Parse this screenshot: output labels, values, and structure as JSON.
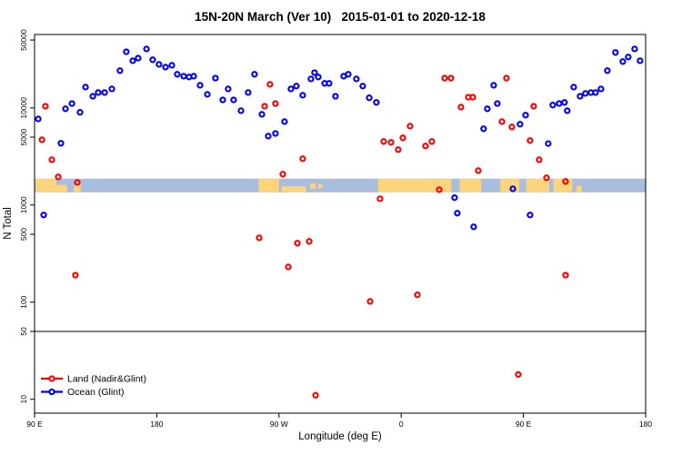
{
  "chart_data": {
    "type": "scatter",
    "title": "15N-20N March (Ver 10)   2015-01-01 to 2020-12-18",
    "xlabel": "Longitude (deg E)",
    "ylabel": "N Total",
    "y_scale": "log10",
    "y_range": [
      7.2,
      57000
    ],
    "y_ticks": [
      10,
      50,
      100,
      500,
      1000,
      5000,
      10000,
      50000
    ],
    "y_tick_labels": [
      "10",
      "50",
      "100",
      "500",
      "1000",
      "5000",
      "10000",
      "50000"
    ],
    "x_axis_span_deg": 450,
    "x_ticks": [
      {
        "t": 0,
        "label": "90 E"
      },
      {
        "t": 90,
        "label": "180"
      },
      {
        "t": 180,
        "label": "90 W"
      },
      {
        "t": 270,
        "label": "0"
      },
      {
        "t": 360,
        "label": "90 E"
      },
      {
        "t": 450,
        "label": "180"
      }
    ],
    "hline_value": 50,
    "grid": false,
    "legend_position": "bottom-left",
    "legend": [
      {
        "label": "Land (Nadir&Glint)",
        "color": "#ff0000"
      },
      {
        "label": "Ocean (Glint)",
        "color": "#0000ff"
      }
    ],
    "series": [
      {
        "name": "Land (Nadir&Glint)",
        "color": "#ff0000",
        "points": [
          [
            5.4,
            4700
          ],
          [
            8.0,
            10400
          ],
          [
            12.7,
            2930
          ],
          [
            17.4,
            1950
          ],
          [
            31.5,
            1710
          ],
          [
            30.1,
            190
          ],
          [
            165.4,
            460
          ],
          [
            169.4,
            10400
          ],
          [
            173.4,
            17500
          ],
          [
            177.4,
            11100
          ],
          [
            182.8,
            2080
          ],
          [
            186.8,
            231
          ],
          [
            193.5,
            405
          ],
          [
            197.5,
            3000
          ],
          [
            202.2,
            423
          ],
          [
            206.9,
            11
          ],
          [
            247.1,
            102
          ],
          [
            254.4,
            1160
          ],
          [
            257.1,
            4510
          ],
          [
            262.5,
            4420
          ],
          [
            267.8,
            3720
          ],
          [
            271.2,
            4920
          ],
          [
            276.5,
            6500
          ],
          [
            281.9,
            119
          ],
          [
            287.9,
            4050
          ],
          [
            292.6,
            4510
          ],
          [
            298.0,
            1440
          ],
          [
            302.0,
            20300
          ],
          [
            306.6,
            20300
          ],
          [
            314.0,
            10200
          ],
          [
            319.4,
            12900
          ],
          [
            322.7,
            12900
          ],
          [
            326.7,
            2260
          ],
          [
            344.2,
            7240
          ],
          [
            347.5,
            20300
          ],
          [
            351.5,
            6370
          ],
          [
            356.2,
            18
          ],
          [
            364.9,
            4610
          ],
          [
            367.6,
            10400
          ],
          [
            371.6,
            2930
          ],
          [
            377.0,
            1910
          ],
          [
            391.0,
            1750
          ],
          [
            391.0,
            190
          ]
        ]
      },
      {
        "name": "Ocean (Glint)",
        "color": "#0000ff",
        "points": [
          [
            2.7,
            7700
          ],
          [
            6.7,
            790
          ],
          [
            19.4,
            4320
          ],
          [
            22.8,
            9800
          ],
          [
            27.5,
            11100
          ],
          [
            33.5,
            9000
          ],
          [
            37.5,
            16400
          ],
          [
            42.9,
            13200
          ],
          [
            46.9,
            14400
          ],
          [
            51.6,
            14400
          ],
          [
            56.9,
            15700
          ],
          [
            62.9,
            24200
          ],
          [
            67.6,
            37900
          ],
          [
            72.3,
            30600
          ],
          [
            76.3,
            32600
          ],
          [
            82.4,
            40500
          ],
          [
            87.0,
            31300
          ],
          [
            91.7,
            28100
          ],
          [
            96.4,
            26300
          ],
          [
            101.1,
            27500
          ],
          [
            105.1,
            22200
          ],
          [
            109.8,
            21200
          ],
          [
            113.8,
            20800
          ],
          [
            117.2,
            21200
          ],
          [
            121.9,
            17100
          ],
          [
            127.2,
            13800
          ],
          [
            133.2,
            20300
          ],
          [
            138.6,
            12100
          ],
          [
            142.6,
            15700
          ],
          [
            146.6,
            12100
          ],
          [
            152.0,
            9370
          ],
          [
            157.3,
            14400
          ],
          [
            162.0,
            22200
          ],
          [
            167.4,
            8600
          ],
          [
            172.1,
            5120
          ],
          [
            177.4,
            5450
          ],
          [
            184.1,
            7240
          ],
          [
            188.8,
            15700
          ],
          [
            192.8,
            16800
          ],
          [
            197.5,
            13500
          ],
          [
            203.5,
            19900
          ],
          [
            206.2,
            23100
          ],
          [
            208.9,
            20800
          ],
          [
            213.6,
            17900
          ],
          [
            216.9,
            17900
          ],
          [
            221.6,
            13200
          ],
          [
            227.6,
            21200
          ],
          [
            231.0,
            22200
          ],
          [
            237.0,
            19900
          ],
          [
            241.7,
            16800
          ],
          [
            246.4,
            12700
          ],
          [
            251.7,
            11400
          ],
          [
            309.3,
            1190
          ],
          [
            311.3,
            824
          ],
          [
            323.4,
            597
          ],
          [
            330.7,
            6100
          ],
          [
            333.4,
            9790
          ],
          [
            338.1,
            17100
          ],
          [
            340.8,
            11100
          ],
          [
            352.2,
            1470
          ],
          [
            357.5,
            6790
          ],
          [
            361.6,
            8420
          ],
          [
            364.9,
            790
          ],
          [
            378.3,
            4300
          ],
          [
            381.6,
            10700
          ],
          [
            386.3,
            11100
          ],
          [
            390.3,
            11400
          ],
          [
            392.3,
            9370
          ],
          [
            397.0,
            16400
          ],
          [
            401.7,
            13200
          ],
          [
            405.7,
            14100
          ],
          [
            409.7,
            14400
          ],
          [
            413.1,
            14400
          ],
          [
            417.1,
            15700
          ],
          [
            421.8,
            24200
          ],
          [
            427.8,
            37200
          ],
          [
            433.2,
            30000
          ],
          [
            437.2,
            33400
          ],
          [
            441.9,
            40500
          ],
          [
            445.9,
            30600
          ]
        ]
      }
    ],
    "map_band": {
      "description": "latitude strip map 15N-20N along longitude axis",
      "n_top": 1870,
      "n_bottom": 1350,
      "ocean_color": "#a9bedd",
      "land_color": "#fbd47c",
      "land_segments": [
        {
          "t0": 0.5,
          "t1": 16,
          "y0": 0,
          "y1": 1
        },
        {
          "t0": 16,
          "t1": 24,
          "y0": 0.45,
          "y1": 1
        },
        {
          "t0": 29,
          "t1": 34,
          "y0": 0.5,
          "y1": 1
        },
        {
          "t0": 165,
          "t1": 180,
          "y0": 0,
          "y1": 1
        },
        {
          "t0": 182,
          "t1": 200,
          "y0": 0.55,
          "y1": 1
        },
        {
          "t0": 203,
          "t1": 207,
          "y0": 0.35,
          "y1": 0.75
        },
        {
          "t0": 209,
          "t1": 212,
          "y0": 0.4,
          "y1": 0.7
        },
        {
          "t0": 253,
          "t1": 307,
          "y0": 0,
          "y1": 1
        },
        {
          "t0": 313,
          "t1": 329,
          "y0": 0,
          "y1": 1
        },
        {
          "t0": 343,
          "t1": 357,
          "y0": 0,
          "y1": 1
        },
        {
          "t0": 362,
          "t1": 379,
          "y0": 0,
          "y1": 1
        },
        {
          "t0": 382,
          "t1": 396,
          "y0": 0,
          "y1": 1
        },
        {
          "t0": 399,
          "t1": 403,
          "y0": 0.5,
          "y1": 1
        }
      ]
    },
    "marker": {
      "shape": "open-circle",
      "radius": 2.6,
      "stroke_width": 2.1
    }
  }
}
